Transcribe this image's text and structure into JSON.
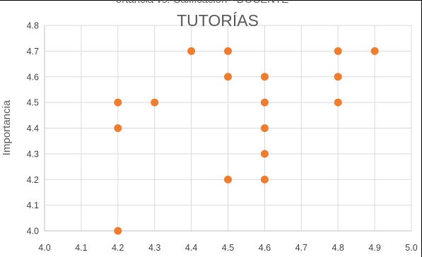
{
  "top_cut_text": "ortancia vs. Calificación - DOCENTE",
  "chart_data": {
    "type": "scatter",
    "title": "TUTORÍAS",
    "xlabel": "",
    "ylabel": "Importancia",
    "xlim": [
      4.0,
      5.0
    ],
    "ylim": [
      4.0,
      4.8
    ],
    "x_ticks": [
      "4.0",
      "4.1",
      "4.2",
      "4.3",
      "4.4",
      "4.5",
      "4.6",
      "4.7",
      "4.8",
      "4.9",
      "5.0"
    ],
    "y_ticks": [
      "4.0",
      "4.1",
      "4.2",
      "4.3",
      "4.4",
      "4.5",
      "4.6",
      "4.7",
      "4.8"
    ],
    "grid": true,
    "marker_color": "#ED7D31",
    "points": [
      {
        "x": 4.2,
        "y": 4.0
      },
      {
        "x": 4.2,
        "y": 4.4
      },
      {
        "x": 4.2,
        "y": 4.5
      },
      {
        "x": 4.3,
        "y": 4.5
      },
      {
        "x": 4.4,
        "y": 4.7
      },
      {
        "x": 4.5,
        "y": 4.7
      },
      {
        "x": 4.5,
        "y": 4.6
      },
      {
        "x": 4.5,
        "y": 4.2
      },
      {
        "x": 4.6,
        "y": 4.6
      },
      {
        "x": 4.6,
        "y": 4.5
      },
      {
        "x": 4.6,
        "y": 4.4
      },
      {
        "x": 4.6,
        "y": 4.3
      },
      {
        "x": 4.6,
        "y": 4.2
      },
      {
        "x": 4.8,
        "y": 4.7
      },
      {
        "x": 4.8,
        "y": 4.6
      },
      {
        "x": 4.8,
        "y": 4.5
      },
      {
        "x": 4.9,
        "y": 4.7
      }
    ]
  }
}
